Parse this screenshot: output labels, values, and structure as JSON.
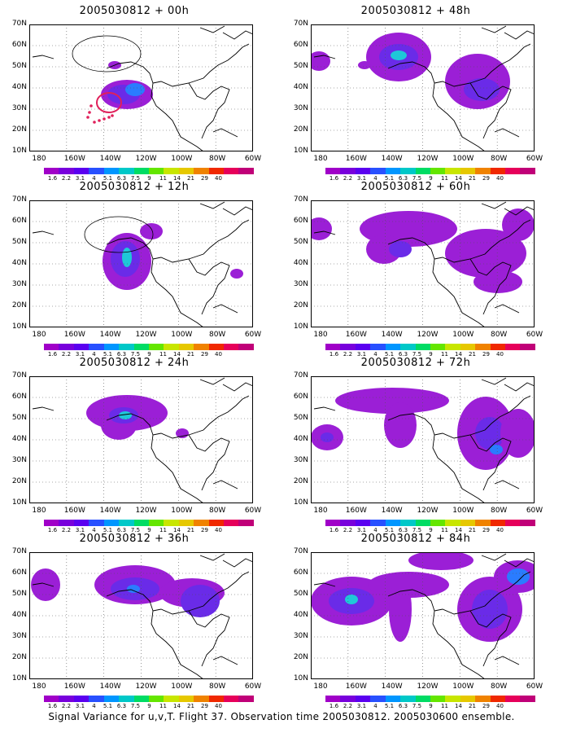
{
  "panels": [
    {
      "title": "2005030812 + 00h"
    },
    {
      "title": "2005030812 + 48h"
    },
    {
      "title": "2005030812 + 12h"
    },
    {
      "title": "2005030812 + 60h"
    },
    {
      "title": "2005030812 + 24h"
    },
    {
      "title": "2005030812 + 72h"
    },
    {
      "title": "2005030812 + 36h"
    },
    {
      "title": "2005030812 + 84h"
    }
  ],
  "y_ticks": [
    "70N",
    "60N",
    "50N",
    "40N",
    "30N",
    "20N",
    "10N"
  ],
  "x_ticks": [
    "180",
    "160W",
    "140W",
    "120W",
    "100W",
    "80W",
    "60W"
  ],
  "colorbar": {
    "labels": [
      "1.6",
      "2.2",
      "3.1",
      "4",
      "5.1",
      "6.3",
      "7.5",
      "9",
      "11",
      "14",
      "21",
      "29",
      "40"
    ],
    "colors": [
      "#a000c8",
      "#7800dc",
      "#5a00f0",
      "#2850ff",
      "#0096ff",
      "#00c8c8",
      "#00dc64",
      "#64e600",
      "#c8e600",
      "#e6c800",
      "#f08200",
      "#f02800",
      "#e6005a",
      "#c00078"
    ]
  },
  "footer": "Signal Variance for u,v,T. Flight 37. Observation time 2005030812. 2005030600 ensemble."
}
